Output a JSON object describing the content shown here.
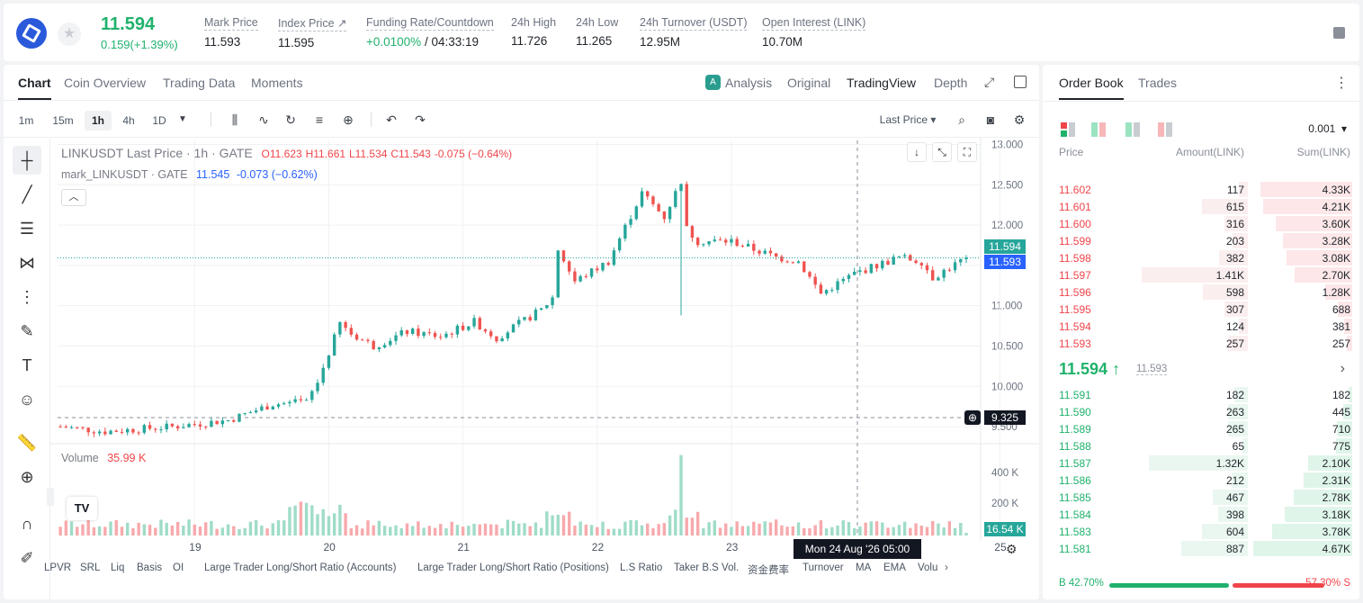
{
  "header": {
    "last_price": "11.594",
    "change": "0.159(+1.39%)",
    "stats": [
      {
        "label": "Mark Price",
        "value": "11.593"
      },
      {
        "label": "Index Price ↗",
        "value": "11.595"
      },
      {
        "label": "Funding Rate/Countdown",
        "value_rate": "+0.0100%",
        "value_countdown": "/ 04:33:19"
      },
      {
        "label": "24h High",
        "value": "11.726"
      },
      {
        "label": "24h Low",
        "value": "11.265"
      },
      {
        "label": "24h Turnover (USDT)",
        "value": "12.95M"
      },
      {
        "label": "Open Interest (LINK)",
        "value": "10.70M"
      }
    ]
  },
  "chart_tabs": [
    "Chart",
    "Coin Overview",
    "Trading Data",
    "Moments"
  ],
  "view_tabs": {
    "analysis": "Analysis",
    "original": "Original",
    "tradingview": "TradingView",
    "depth": "Depth"
  },
  "timeframes": [
    "1m",
    "15m",
    "1h",
    "4h",
    "1D"
  ],
  "price_select": "Last Price",
  "legend": {
    "title": "LINKUSDT Last Price · 1h · GATE",
    "o": "O11.623",
    "h": "H11.661",
    "l": "L11.534",
    "c": "C11.543",
    "chg": "-0.075 (−0.64%)",
    "mark_label": "mark_LINKUSDT · GATE",
    "mark_value": "11.545",
    "mark_chg": "-0.073 (−0.62%)"
  },
  "volume_legend": {
    "label": "Volume",
    "value": "35.99 K"
  },
  "price_tags": {
    "last": "11.594",
    "mark": "11.593",
    "cursor": "9.325",
    "volume": "16.54 K"
  },
  "cursor_date": "Mon 24 Aug '26   05:00",
  "indicators": [
    "LPVR",
    "SRL",
    "Liq",
    "Basis",
    "OI",
    "Large Trader Long/Short Ratio (Accounts)",
    "Large Trader Long/Short Ratio (Positions)",
    "L.S Ratio",
    "Taker B.S Vol.",
    "资金费率",
    "Turnover",
    "MA",
    "EMA",
    "Volu"
  ],
  "colors": {
    "up": "#20b26c",
    "down": "#ef454a",
    "candle_up": "#26a69a",
    "candle_down": "#ef5350"
  },
  "chart_data": {
    "type": "candlestick",
    "y_ticks": [
      "13.000",
      "12.500",
      "12.000",
      "11.500",
      "11.000",
      "10.500",
      "10.000",
      "9.500"
    ],
    "ylim": [
      9.3,
      13.05
    ],
    "x_ticks": [
      "19",
      "20",
      "21",
      "22",
      "23",
      "25"
    ],
    "x_tick_hours": [
      24,
      48,
      72,
      96,
      120,
      168
    ],
    "x_range_hours": [
      -0.5,
      162
    ],
    "close_waypoints": [
      [
        0,
        9.5
      ],
      [
        8,
        9.44
      ],
      [
        20,
        9.5
      ],
      [
        30,
        9.58
      ],
      [
        38,
        9.78
      ],
      [
        44,
        9.8
      ],
      [
        46,
        10.05
      ],
      [
        50,
        10.78
      ],
      [
        52,
        10.65
      ],
      [
        56,
        10.5
      ],
      [
        62,
        10.68
      ],
      [
        68,
        10.62
      ],
      [
        74,
        10.8
      ],
      [
        78,
        10.6
      ],
      [
        86,
        10.95
      ],
      [
        88,
        11.1
      ],
      [
        89,
        11.7
      ],
      [
        92,
        11.3
      ],
      [
        98,
        11.55
      ],
      [
        104,
        12.4
      ],
      [
        108,
        12.1
      ],
      [
        110,
        12.4
      ],
      [
        111,
        12.55
      ],
      [
        112,
        11.95
      ],
      [
        114,
        11.8
      ],
      [
        120,
        11.8
      ],
      [
        124,
        11.7
      ],
      [
        128,
        11.6
      ],
      [
        132,
        11.55
      ],
      [
        136,
        11.15
      ],
      [
        142,
        11.4
      ],
      [
        150,
        11.6
      ],
      [
        154,
        11.55
      ],
      [
        156,
        11.35
      ],
      [
        162,
        11.594
      ]
    ],
    "volume_ylim": [
      0,
      520
    ],
    "volume_ticks": [
      "400 K",
      "200 K"
    ],
    "volume_spike_hour": 111
  },
  "book": {
    "tabs": [
      "Order Book",
      "Trades"
    ],
    "tick": "0.001",
    "headers": {
      "price": "Price",
      "amount": "Amount(LINK)",
      "sum": "Sum(LINK)"
    },
    "asks": [
      {
        "p": "11.602",
        "a": "117",
        "s": "4.33K",
        "sv": 4.33,
        "av": 117
      },
      {
        "p": "11.601",
        "a": "615",
        "s": "4.21K",
        "sv": 4.21,
        "av": 615
      },
      {
        "p": "11.600",
        "a": "316",
        "s": "3.60K",
        "sv": 3.6,
        "av": 316
      },
      {
        "p": "11.599",
        "a": "203",
        "s": "3.28K",
        "sv": 3.28,
        "av": 203
      },
      {
        "p": "11.598",
        "a": "382",
        "s": "3.08K",
        "sv": 3.08,
        "av": 382
      },
      {
        "p": "11.597",
        "a": "1.41K",
        "s": "2.70K",
        "sv": 2.7,
        "av": 1410
      },
      {
        "p": "11.596",
        "a": "598",
        "s": "1.28K",
        "sv": 1.28,
        "av": 598
      },
      {
        "p": "11.595",
        "a": "307",
        "s": "688",
        "sv": 0.688,
        "av": 307
      },
      {
        "p": "11.594",
        "a": "124",
        "s": "381",
        "sv": 0.381,
        "av": 124
      },
      {
        "p": "11.593",
        "a": "257",
        "s": "257",
        "sv": 0.257,
        "av": 257
      }
    ],
    "mid": {
      "price": "11.594 ↑",
      "mark": "11.593"
    },
    "bids": [
      {
        "p": "11.591",
        "a": "182",
        "s": "182",
        "sv": 0.182,
        "av": 182
      },
      {
        "p": "11.590",
        "a": "263",
        "s": "445",
        "sv": 0.445,
        "av": 263
      },
      {
        "p": "11.589",
        "a": "265",
        "s": "710",
        "sv": 0.71,
        "av": 265
      },
      {
        "p": "11.588",
        "a": "65",
        "s": "775",
        "sv": 0.775,
        "av": 65
      },
      {
        "p": "11.587",
        "a": "1.32K",
        "s": "2.10K",
        "sv": 2.1,
        "av": 1320
      },
      {
        "p": "11.586",
        "a": "212",
        "s": "2.31K",
        "sv": 2.31,
        "av": 212
      },
      {
        "p": "11.585",
        "a": "467",
        "s": "2.78K",
        "sv": 2.78,
        "av": 467
      },
      {
        "p": "11.584",
        "a": "398",
        "s": "3.18K",
        "sv": 3.18,
        "av": 398
      },
      {
        "p": "11.583",
        "a": "604",
        "s": "3.78K",
        "sv": 3.78,
        "av": 604
      },
      {
        "p": "11.581",
        "a": "887",
        "s": "4.67K",
        "sv": 4.67,
        "av": 887
      }
    ],
    "ratio": {
      "buy": "B 42.70%",
      "sell": "57.30% S",
      "buy_pct": 42.7
    }
  }
}
